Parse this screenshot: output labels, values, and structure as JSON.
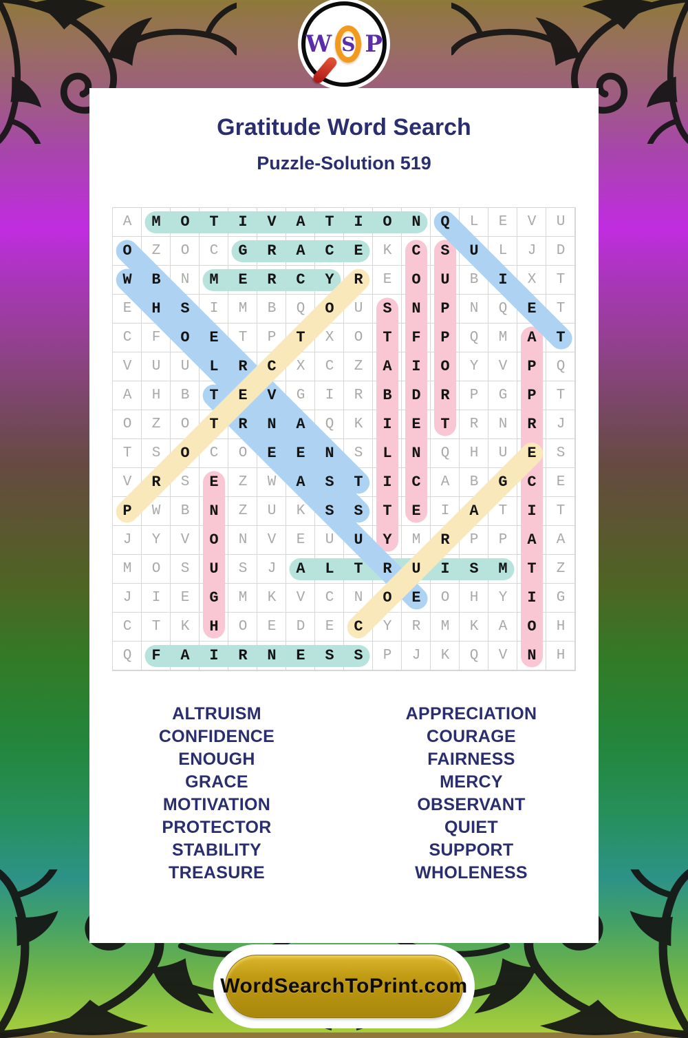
{
  "logo": {
    "letters": [
      "W",
      "S",
      "P"
    ]
  },
  "header": {
    "title": "Gratitude Word Search",
    "subtitle": "Puzzle-Solution 519"
  },
  "grid": {
    "rows": [
      "AMOTIVATIONQLEVU",
      "OZOCGRACEKCSULJD",
      "WBNMERCYREOUBIXT",
      "EHSIMBQOUSNPNQET",
      "CFOETPTXOTFPQMAT",
      "VUULRCXCZAIOYVPQ",
      "AHBTEVGIRBDRPGPT",
      "OZOTRNAQKIETRNRJ",
      "TSOCOEENSLNQHUES",
      "VRSEZWASTICABGCE",
      "PWBNZUKSSTEIATIT",
      "JYVONVEUUYMRPPAA",
      "MOSUSJALTRUISMTZ",
      "JIEGMKVCNOEOHYIG",
      "CTKHOEDECYRMKAOH",
      "QFAIRNESSPJKQVNH"
    ],
    "solutions": [
      {
        "word": "MOTIVATION",
        "row": 1,
        "col": 2,
        "drow": 0,
        "dcol": 1,
        "color": "teal"
      },
      {
        "word": "GRACE",
        "row": 2,
        "col": 5,
        "drow": 0,
        "dcol": 1,
        "color": "teal"
      },
      {
        "word": "MERCY",
        "row": 3,
        "col": 4,
        "drow": 0,
        "dcol": 1,
        "color": "teal"
      },
      {
        "word": "ALTRUISM",
        "row": 13,
        "col": 7,
        "drow": 0,
        "dcol": 1,
        "color": "teal"
      },
      {
        "word": "FAIRNESS",
        "row": 16,
        "col": 2,
        "drow": 0,
        "dcol": 1,
        "color": "teal"
      },
      {
        "word": "CONFIDENCE",
        "row": 2,
        "col": 11,
        "drow": 1,
        "dcol": 0,
        "color": "pink"
      },
      {
        "word": "SUPPORT",
        "row": 2,
        "col": 12,
        "drow": 1,
        "dcol": 0,
        "color": "pink"
      },
      {
        "word": "STABILITY",
        "row": 4,
        "col": 10,
        "drow": 1,
        "dcol": 0,
        "color": "pink"
      },
      {
        "word": "APPRECIATION",
        "row": 5,
        "col": 15,
        "drow": 1,
        "dcol": 0,
        "color": "pink"
      },
      {
        "word": "ENOUGH",
        "row": 10,
        "col": 4,
        "drow": 1,
        "dcol": 0,
        "color": "pink"
      },
      {
        "word": "QUIET",
        "row": 1,
        "col": 12,
        "drow": 1,
        "dcol": 1,
        "color": "blue"
      },
      {
        "word": "OBSERVANT",
        "row": 2,
        "col": 1,
        "drow": 1,
        "dcol": 1,
        "color": "blue"
      },
      {
        "word": "WHOLENESS",
        "row": 3,
        "col": 1,
        "drow": 1,
        "dcol": 1,
        "color": "blue"
      },
      {
        "word": "TREASURE",
        "row": 7,
        "col": 4,
        "drow": 1,
        "dcol": 1,
        "color": "blue"
      },
      {
        "word": "PROTECTOR",
        "row": 11,
        "col": 1,
        "drow": -1,
        "dcol": 1,
        "color": "yellow"
      },
      {
        "word": "COURAGE",
        "row": 15,
        "col": 9,
        "drow": -1,
        "dcol": 1,
        "color": "yellow"
      }
    ],
    "highlight_colors": {
      "teal": "#b7e3dc",
      "pink": "#f8c7d3",
      "blue": "#aed3f2",
      "yellow": "#f9e8ba"
    }
  },
  "word_list": {
    "left": [
      "ALTRUISM",
      "CONFIDENCE",
      "ENOUGH",
      "GRACE",
      "MOTIVATION",
      "PROTECTOR",
      "STABILITY",
      "TREASURE"
    ],
    "right": [
      "APPRECIATION",
      "COURAGE",
      "FAIRNESS",
      "MERCY",
      "OBSERVANT",
      "QUIET",
      "SUPPORT",
      "WHOLENESS"
    ]
  },
  "footer": {
    "site_label": "WordSearchToPrint.com"
  },
  "colors": {
    "text_navy": "#2b2e6e",
    "logo_purple": "#5b2da8",
    "button_gold": "#c09a12",
    "grid_letter_gray": "#a9a9a9",
    "grid_letter_solved": "#141414"
  }
}
